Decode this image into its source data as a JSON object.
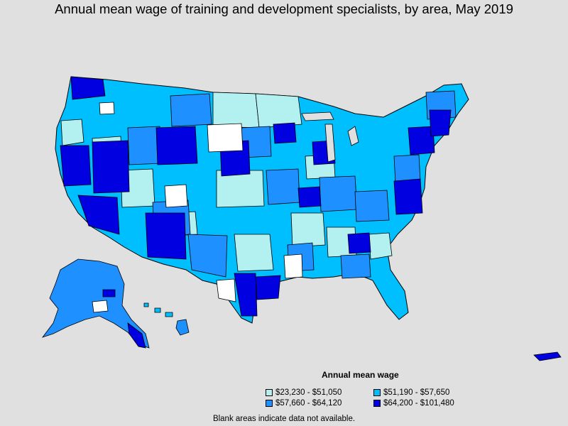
{
  "title": "Annual mean wage of training and development specialists, by area, May 2019",
  "legend": {
    "title": "Annual mean wage",
    "items": [
      {
        "label": "$23,230 - $51,050",
        "color": "#b3f0f0"
      },
      {
        "label": "$51,190 - $57,650",
        "color": "#00bfff"
      },
      {
        "label": "$57,660 - $64,120",
        "color": "#1e90ff"
      },
      {
        "label": "$64,200 - $101,480",
        "color": "#0000e0"
      }
    ]
  },
  "footnote": "Blank areas indicate data not available.",
  "colors": {
    "background": "#e0e0e0",
    "no_data": "#ffffff",
    "border": "#000000"
  }
}
